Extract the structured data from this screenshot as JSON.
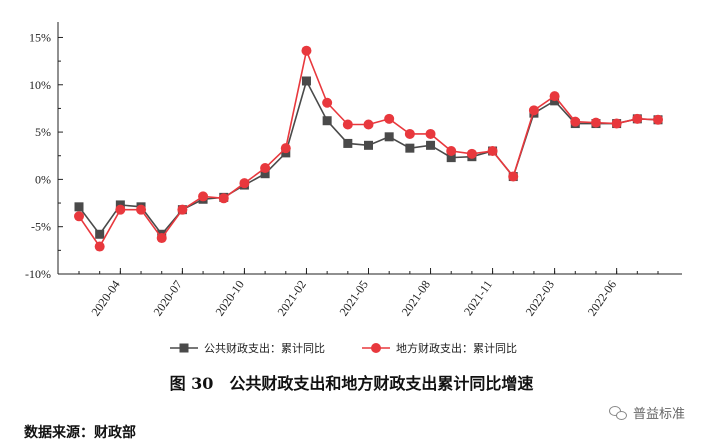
{
  "chart_data": {
    "type": "line",
    "title": "",
    "xlabel": "",
    "ylabel": "",
    "yticks": [
      "-10%",
      "-5%",
      "0%",
      "5%",
      "10%",
      "15%"
    ],
    "ylim": [
      -10,
      16
    ],
    "x": [
      "2020-02",
      "2020-03",
      "2020-04",
      "2020-05",
      "2020-06",
      "2020-07",
      "2020-08",
      "2020-09",
      "2020-10",
      "2020-11",
      "2020-12",
      "2021-02",
      "2021-03",
      "2021-04",
      "2021-05",
      "2021-06",
      "2021-07",
      "2021-08",
      "2021-09",
      "2021-10",
      "2021-11",
      "2021-12",
      "2022-02",
      "2022-03",
      "2022-04",
      "2022-05",
      "2022-06",
      "2022-07",
      "2022-08"
    ],
    "x_tick_labels": [
      "2020-04",
      "2020-07",
      "2020-10",
      "2021-02",
      "2021-05",
      "2021-08",
      "2021-11",
      "2022-03",
      "2022-06"
    ],
    "series": [
      {
        "name": "公共财政支出：累计同比",
        "color": "#4a4a4a",
        "marker": "square",
        "values": [
          -2.9,
          -5.8,
          -2.7,
          -2.9,
          -5.8,
          -3.2,
          -2.1,
          -1.9,
          -0.6,
          0.6,
          2.8,
          10.4,
          6.2,
          3.8,
          3.6,
          4.5,
          3.3,
          3.6,
          2.3,
          2.4,
          3.0,
          0.3,
          7.0,
          8.3,
          5.9,
          5.9,
          5.9,
          6.4,
          6.3
        ]
      },
      {
        "name": "地方财政支出：累计同比",
        "color": "#e8383d",
        "marker": "circle",
        "values": [
          -3.9,
          -7.1,
          -3.2,
          -3.2,
          -6.2,
          -3.2,
          -1.8,
          -2.0,
          -0.4,
          1.2,
          3.3,
          13.6,
          8.1,
          5.8,
          5.8,
          6.4,
          4.8,
          4.8,
          3.0,
          2.7,
          3.0,
          0.3,
          7.3,
          8.8,
          6.1,
          6.0,
          5.9,
          6.4,
          6.3
        ]
      }
    ],
    "legend_position": "bottom",
    "grid": false
  },
  "caption": "图 30　公共财政支出和地方财政支出累计同比增速",
  "source_text": "数据来源：财政部",
  "watermark": "普益标准"
}
